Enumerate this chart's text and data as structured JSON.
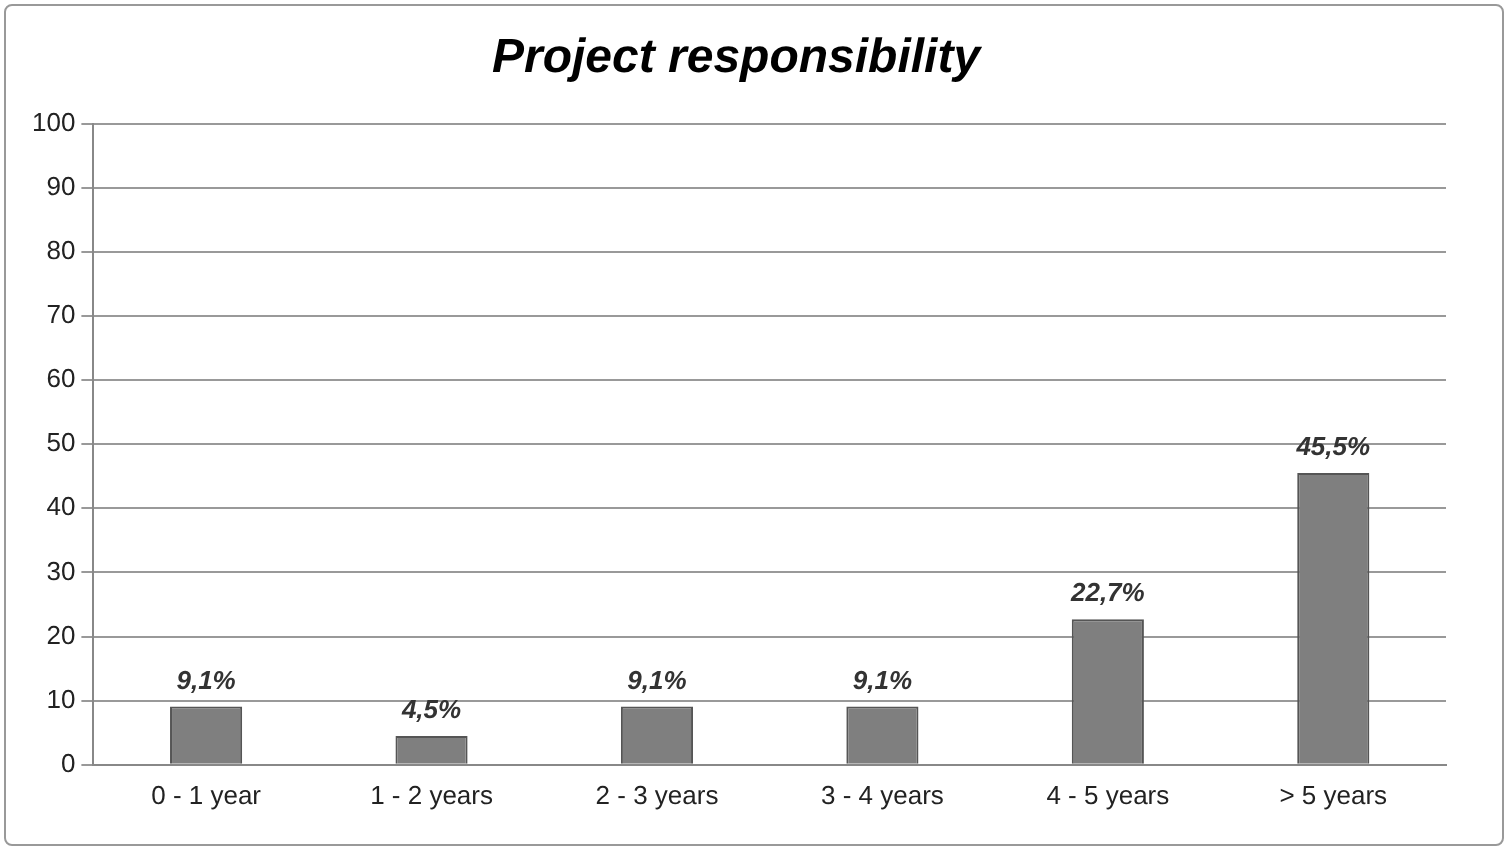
{
  "chart_data": {
    "type": "bar",
    "title": "Project responsibility",
    "categories": [
      "0 - 1 year",
      "1 - 2 years",
      "2 - 3 years",
      "3 - 4 years",
      "4 - 5 years",
      "> 5 years"
    ],
    "values": [
      9.1,
      4.5,
      9.1,
      9.1,
      22.7,
      45.5
    ],
    "value_labels": [
      "9,1%",
      "4,5%",
      "9,1%",
      "9,1%",
      "22,7%",
      "45,5%"
    ],
    "color": "#7f7f7f",
    "ylim": [
      0,
      100
    ],
    "yticks": [
      0,
      10,
      20,
      30,
      40,
      50,
      60,
      70,
      80,
      90,
      100
    ],
    "grid": "y",
    "legend": false
  }
}
